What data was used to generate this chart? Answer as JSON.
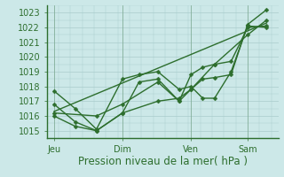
{
  "background_color": "#cce8e8",
  "plot_bg_color": "#cce8e8",
  "grid_color": "#aacccc",
  "line_color": "#2d6e2d",
  "xlabel": "Pression niveau de la mer( hPa )",
  "ylim": [
    1014.5,
    1023.5
  ],
  "yticks": [
    1015,
    1016,
    1017,
    1018,
    1019,
    1020,
    1021,
    1022,
    1023
  ],
  "xtick_labels": [
    "Jeu",
    "Dim",
    "Ven",
    "Sam"
  ],
  "xtick_positions": [
    0.3,
    3.2,
    6.1,
    8.5
  ],
  "xlim": [
    0.0,
    9.8
  ],
  "series": [
    {
      "x": [
        0.3,
        9.3
      ],
      "y": [
        1016.3,
        1022.3
      ]
    },
    {
      "x": [
        0.3,
        1.2,
        2.1,
        3.2,
        3.9,
        4.7,
        5.6,
        6.1,
        6.6,
        7.1,
        7.8,
        8.5,
        9.3
      ],
      "y": [
        1017.7,
        1016.5,
        1015.1,
        1018.5,
        1018.8,
        1019.0,
        1017.8,
        1018.0,
        1017.2,
        1017.2,
        1019.0,
        1022.1,
        1022.0
      ]
    },
    {
      "x": [
        0.3,
        1.2,
        2.1,
        3.2,
        3.9,
        4.7,
        5.6,
        6.1,
        6.6,
        7.1,
        7.8,
        8.5,
        9.3
      ],
      "y": [
        1016.8,
        1015.6,
        1015.0,
        1016.2,
        1018.3,
        1018.5,
        1017.0,
        1017.8,
        1018.5,
        1018.6,
        1018.8,
        1022.2,
        1023.2
      ]
    },
    {
      "x": [
        0.3,
        2.1,
        3.2,
        4.7,
        5.6,
        6.1,
        6.6,
        7.1,
        7.8,
        8.5,
        9.3
      ],
      "y": [
        1016.2,
        1016.0,
        1016.8,
        1018.3,
        1017.0,
        1018.8,
        1019.3,
        1019.5,
        1019.7,
        1022.0,
        1022.1
      ]
    },
    {
      "x": [
        0.3,
        1.2,
        2.1,
        3.2,
        4.7,
        5.6,
        6.1,
        7.1,
        8.5,
        9.3
      ],
      "y": [
        1016.0,
        1015.3,
        1015.0,
        1016.2,
        1017.0,
        1017.2,
        1017.8,
        1019.5,
        1021.5,
        1022.5
      ]
    }
  ],
  "marker_size": 3,
  "line_width": 1.0,
  "font_color": "#2d6e2d",
  "tick_font_size": 7,
  "label_font_size": 8.5
}
